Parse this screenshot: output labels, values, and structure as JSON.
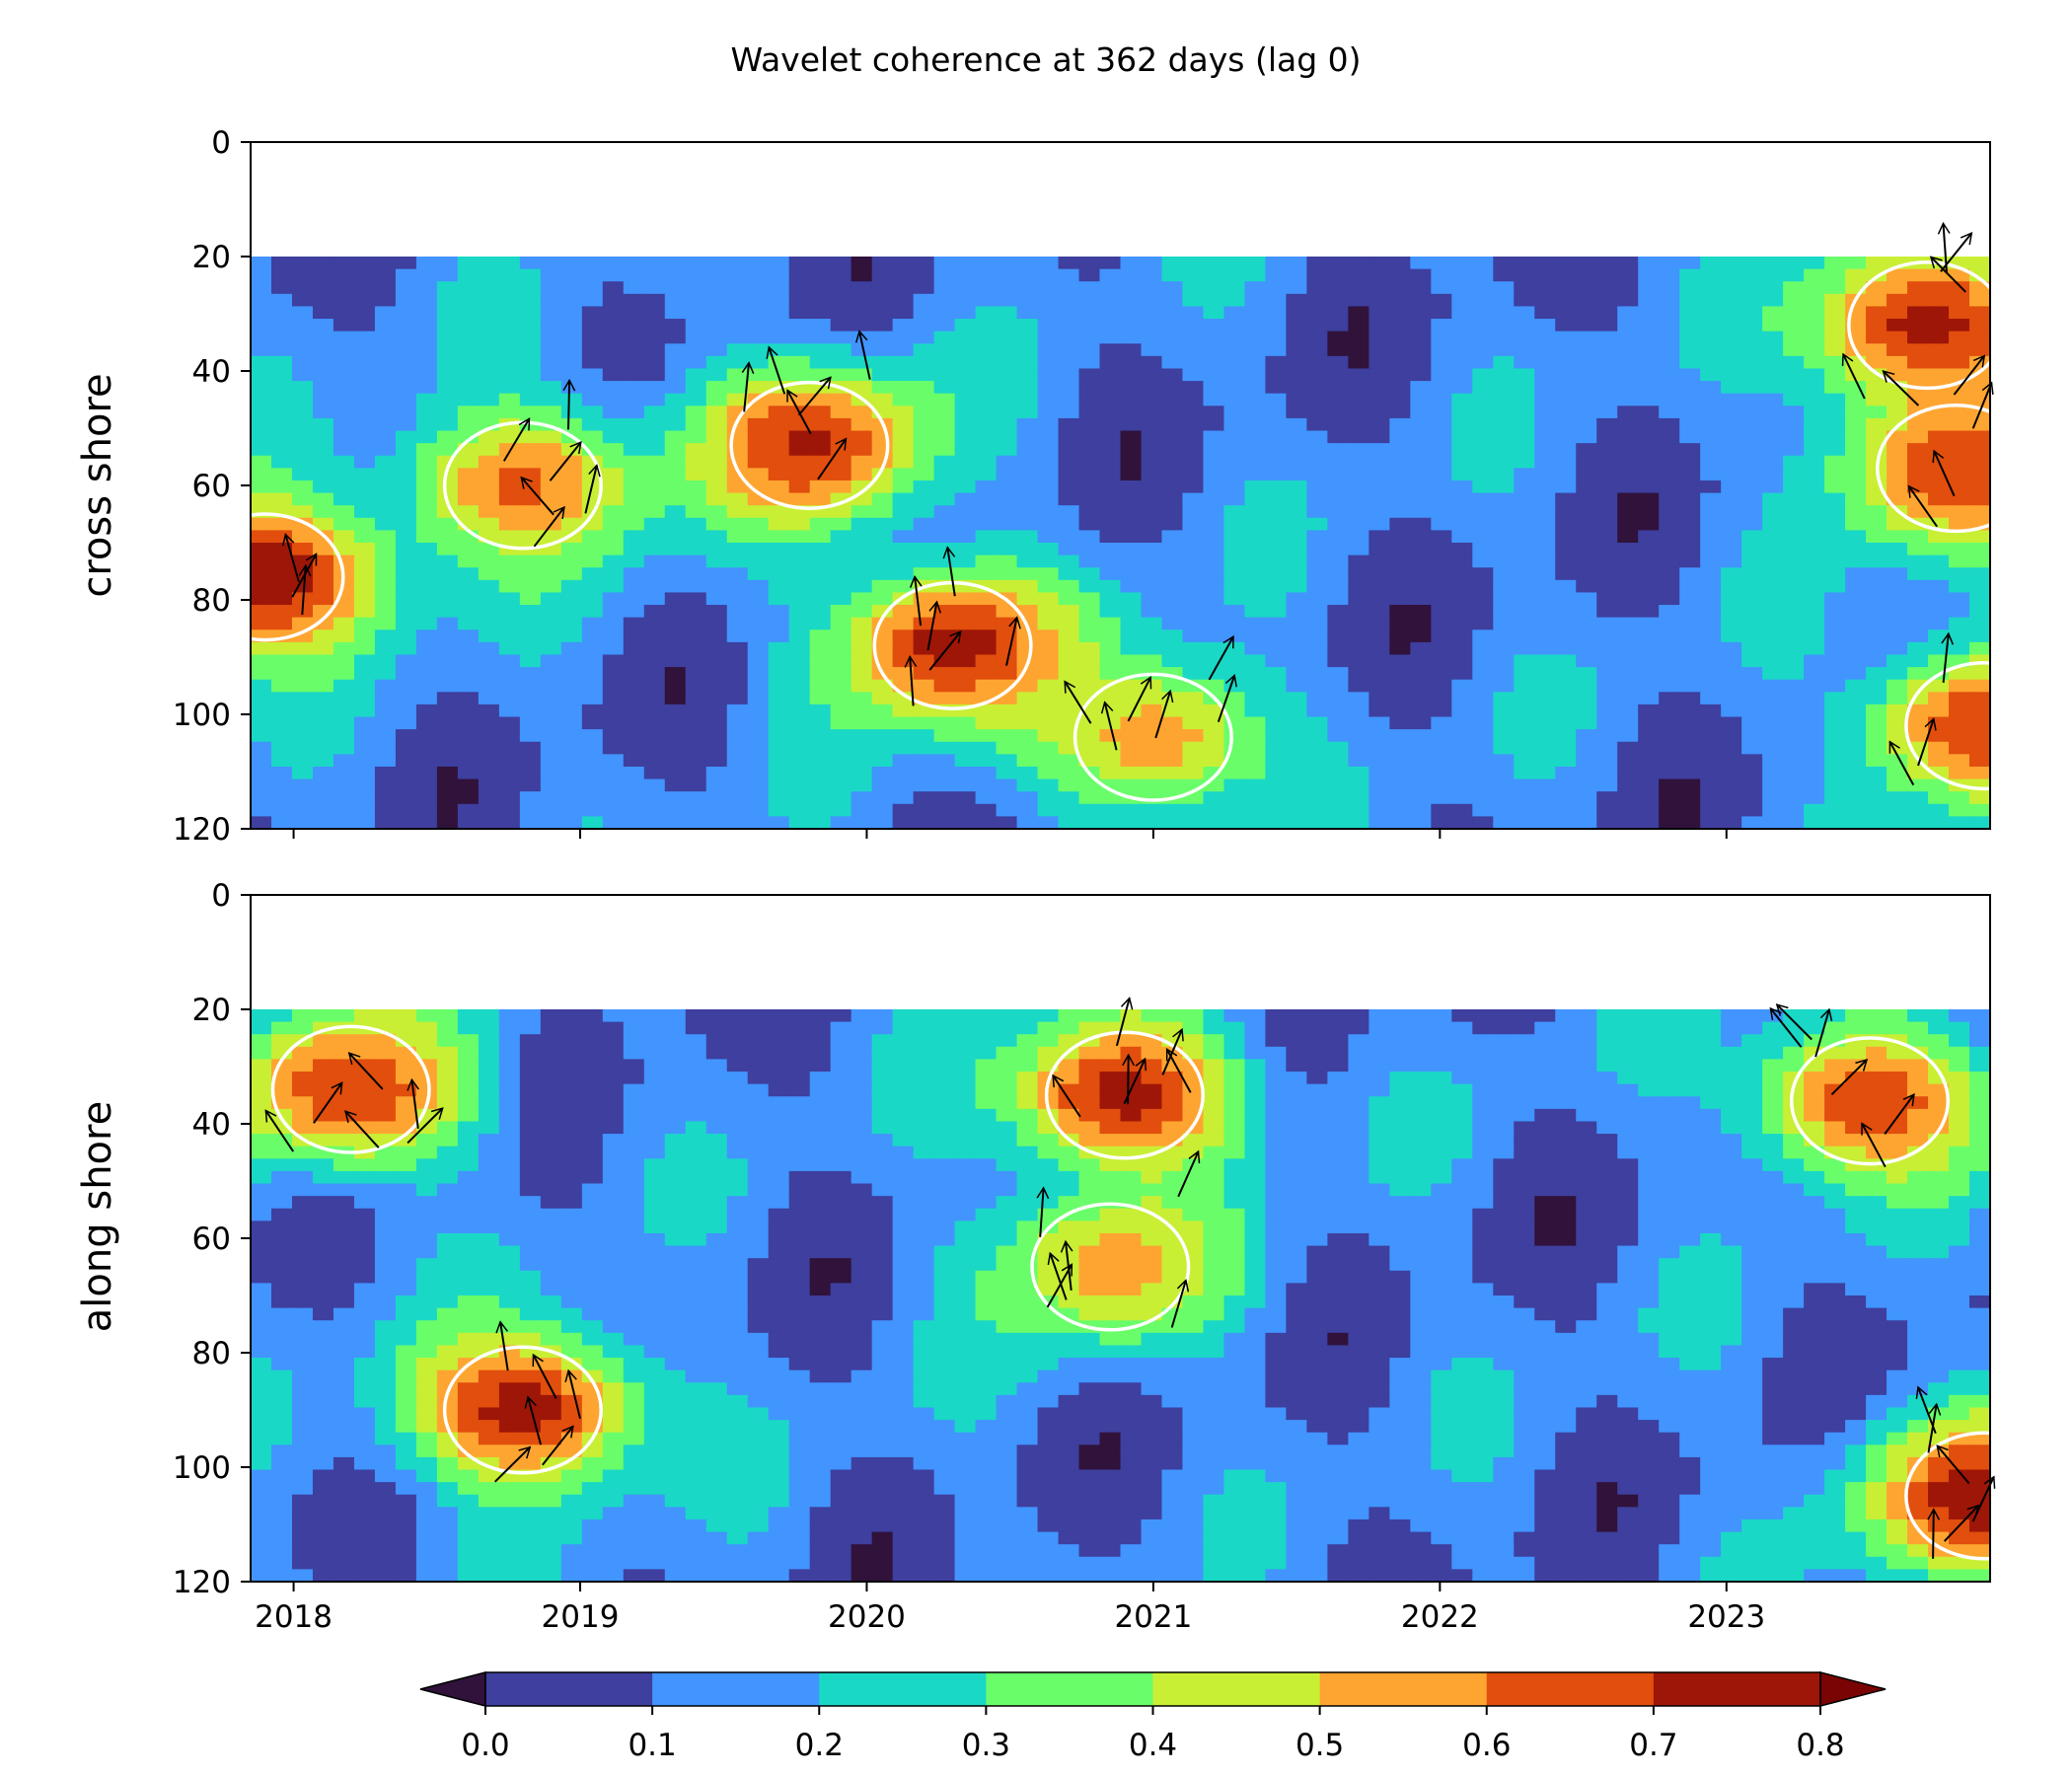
{
  "chart_data": {
    "type": "heatmap",
    "title": "Wavelet coherence at 362 days (lag 0)",
    "x_ticks": [
      "2018",
      "2019",
      "2020",
      "2021",
      "2022",
      "2023"
    ],
    "x_tick_values": [
      2018.0,
      2019.0,
      2020.0,
      2021.0,
      2022.0,
      2023.0
    ],
    "xlim": [
      2017.85,
      2023.92
    ],
    "colorbar": {
      "levels": [
        0.0,
        0.1,
        0.2,
        0.3,
        0.4,
        0.5,
        0.6,
        0.7,
        0.8
      ],
      "tick_labels": [
        "0.0",
        "0.1",
        "0.2",
        "0.3",
        "0.4",
        "0.5",
        "0.6",
        "0.7",
        "0.8"
      ],
      "colors": [
        "#30123b",
        "#3e3f9e",
        "#4294ff",
        "#1ad8c6",
        "#6afd6a",
        "#c8ef34",
        "#fea531",
        "#e14e0d",
        "#9e1607",
        "#7a0403"
      ],
      "extend": "both"
    },
    "significance_contour": 0.5,
    "panels": [
      {
        "ylabel": "cross shore",
        "ylim": [
          0,
          120
        ],
        "y_ticks": [
          "0",
          "20",
          "40",
          "60",
          "80",
          "100",
          "120"
        ],
        "y_tick_values": [
          0,
          20,
          40,
          60,
          80,
          100,
          120
        ],
        "masked_above": 20,
        "coherence_peaks": [
          {
            "x": 2017.9,
            "y": 76,
            "value": 0.8
          },
          {
            "x": 2018.8,
            "y": 60,
            "value": 0.62
          },
          {
            "x": 2019.8,
            "y": 53,
            "value": 0.72
          },
          {
            "x": 2020.3,
            "y": 88,
            "value": 0.75
          },
          {
            "x": 2021.0,
            "y": 104,
            "value": 0.56
          },
          {
            "x": 2023.7,
            "y": 32,
            "value": 0.75
          },
          {
            "x": 2023.8,
            "y": 57,
            "value": 0.7
          },
          {
            "x": 2023.9,
            "y": 102,
            "value": 0.7
          }
        ]
      },
      {
        "ylabel": "along shore",
        "ylim": [
          0,
          120
        ],
        "y_ticks": [
          "0",
          "20",
          "40",
          "60",
          "80",
          "100",
          "120"
        ],
        "y_tick_values": [
          0,
          20,
          40,
          60,
          80,
          100,
          120
        ],
        "masked_above": 20,
        "coherence_peaks": [
          {
            "x": 2018.2,
            "y": 34,
            "value": 0.7
          },
          {
            "x": 2018.8,
            "y": 90,
            "value": 0.75
          },
          {
            "x": 2020.9,
            "y": 35,
            "value": 0.75
          },
          {
            "x": 2020.85,
            "y": 65,
            "value": 0.55
          },
          {
            "x": 2023.5,
            "y": 36,
            "value": 0.68
          },
          {
            "x": 2023.9,
            "y": 105,
            "value": 0.78
          }
        ]
      }
    ]
  }
}
